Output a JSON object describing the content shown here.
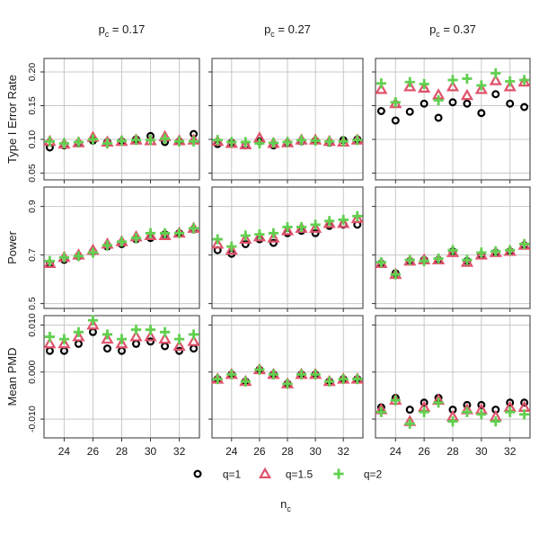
{
  "chart_data": {
    "type": "scatter",
    "x_label": "n",
    "x_label_sub": "c",
    "x_ticks": [
      24,
      26,
      28,
      30,
      32
    ],
    "x_range": [
      22.6,
      33.4
    ],
    "x_values": [
      23,
      24,
      25,
      26,
      27,
      28,
      29,
      30,
      31,
      32,
      33
    ],
    "legend": {
      "position": "bottom",
      "entries": [
        {
          "label": "q=1",
          "shape": "circle",
          "color": "#000000"
        },
        {
          "label": "q=1.5",
          "shape": "triangle",
          "color": "#df536b"
        },
        {
          "label": "q=2",
          "shape": "plus",
          "color": "#61d04f"
        }
      ]
    },
    "columns": [
      {
        "label_main": "p",
        "label_sub": "c",
        "label_rest": " = 0.17"
      },
      {
        "label_main": "p",
        "label_sub": "c",
        "label_rest": " = 0.27"
      },
      {
        "label_main": "p",
        "label_sub": "c",
        "label_rest": " = 0.37"
      }
    ],
    "rows": [
      {
        "label": "Type I Error Rate",
        "y_range": [
          0.04,
          0.22
        ],
        "y_ticks": [
          0.05,
          0.1,
          0.15,
          0.2
        ],
        "y_tick_labels": [
          "0.05",
          "0.10",
          "0.15",
          "0.20"
        ],
        "panels": [
          {
            "series": [
              [
                0.088,
                0.091,
                0.094,
                0.098,
                0.096,
                0.097,
                0.1,
                0.105,
                0.096,
                0.097,
                0.108
              ],
              [
                0.097,
                0.093,
                0.095,
                0.103,
                0.096,
                0.097,
                0.099,
                0.098,
                0.104,
                0.098,
                0.099
              ],
              [
                0.097,
                0.094,
                0.096,
                0.1,
                0.094,
                0.098,
                0.099,
                0.099,
                0.101,
                0.097,
                0.097
              ]
            ]
          },
          {
            "series": [
              [
                0.093,
                0.095,
                0.091,
                0.097,
                0.091,
                0.094,
                0.097,
                0.098,
                0.095,
                0.099,
                0.1
              ],
              [
                0.097,
                0.094,
                0.092,
                0.102,
                0.094,
                0.095,
                0.099,
                0.099,
                0.097,
                0.096,
                0.099
              ],
              [
                0.099,
                0.096,
                0.096,
                0.094,
                0.095,
                0.096,
                0.099,
                0.098,
                0.097,
                0.097,
                0.099
              ]
            ]
          },
          {
            "series": [
              [
                0.142,
                0.128,
                0.141,
                0.153,
                0.132,
                0.155,
                0.153,
                0.139,
                0.167,
                0.153,
                0.148
              ],
              [
                0.174,
                0.153,
                0.178,
                0.176,
                0.166,
                0.178,
                0.165,
                0.174,
                0.187,
                0.178,
                0.185
              ],
              [
                0.183,
                0.155,
                0.185,
                0.182,
                0.158,
                0.188,
                0.19,
                0.18,
                0.198,
                0.186,
                0.188
              ]
            ]
          }
        ]
      },
      {
        "label": "Power",
        "y_range": [
          0.48,
          0.98
        ],
        "y_ticks": [
          0.5,
          0.7,
          0.9
        ],
        "y_tick_labels": [
          "0.5",
          "0.7",
          "0.9"
        ],
        "panels": [
          {
            "series": [
              [
                0.665,
                0.68,
                0.695,
                0.715,
                0.735,
                0.745,
                0.765,
                0.77,
                0.785,
                0.79,
                0.805
              ],
              [
                0.665,
                0.69,
                0.7,
                0.72,
                0.745,
                0.755,
                0.775,
                0.78,
                0.78,
                0.79,
                0.81
              ],
              [
                0.675,
                0.69,
                0.695,
                0.71,
                0.74,
                0.755,
                0.77,
                0.79,
                0.79,
                0.79,
                0.81
              ]
            ]
          },
          {
            "series": [
              [
                0.72,
                0.705,
                0.745,
                0.765,
                0.75,
                0.79,
                0.8,
                0.79,
                0.82,
                0.825,
                0.825
              ],
              [
                0.745,
                0.72,
                0.765,
                0.775,
                0.77,
                0.8,
                0.81,
                0.81,
                0.83,
                0.83,
                0.85
              ],
              [
                0.765,
                0.735,
                0.78,
                0.785,
                0.79,
                0.815,
                0.815,
                0.825,
                0.84,
                0.845,
                0.86
              ]
            ]
          },
          {
            "series": [
              [
                0.665,
                0.625,
                0.675,
                0.68,
                0.68,
                0.715,
                0.675,
                0.7,
                0.71,
                0.715,
                0.74
              ],
              [
                0.665,
                0.62,
                0.675,
                0.68,
                0.68,
                0.71,
                0.67,
                0.7,
                0.71,
                0.715,
                0.74
              ],
              [
                0.67,
                0.62,
                0.68,
                0.675,
                0.685,
                0.72,
                0.68,
                0.71,
                0.715,
                0.72,
                0.745
              ]
            ]
          }
        ]
      },
      {
        "label": "Mean PMD",
        "y_range": [
          -0.014,
          0.012
        ],
        "y_ticks": [
          -0.01,
          0.0,
          0.01
        ],
        "y_tick_labels": [
          "-0.010",
          "0.000",
          "0.010"
        ],
        "panels": [
          {
            "series": [
              [
                0.0045,
                0.0045,
                0.006,
                0.0085,
                0.005,
                0.0045,
                0.006,
                0.0065,
                0.0055,
                0.0045,
                0.005
              ],
              [
                0.006,
                0.006,
                0.0075,
                0.01,
                0.007,
                0.006,
                0.0075,
                0.0075,
                0.007,
                0.0055,
                0.0065
              ],
              [
                0.0075,
                0.007,
                0.0085,
                0.011,
                0.008,
                0.007,
                0.009,
                0.009,
                0.0085,
                0.007,
                0.008
              ]
            ]
          },
          {
            "series": [
              [
                -0.0015,
                -0.0005,
                -0.002,
                0.0005,
                -0.0005,
                -0.0025,
                -0.0005,
                -0.0005,
                -0.002,
                -0.0015,
                -0.0015
              ],
              [
                -0.0015,
                -0.0005,
                -0.002,
                0.0005,
                -0.0005,
                -0.0025,
                -0.0005,
                -0.0005,
                -0.002,
                -0.0015,
                -0.0015
              ],
              [
                -0.0015,
                -0.0005,
                -0.002,
                0.0005,
                -0.0005,
                -0.0025,
                -0.0005,
                -0.0005,
                -0.002,
                -0.0015,
                -0.0015
              ]
            ]
          },
          {
            "series": [
              [
                -0.0075,
                -0.0055,
                -0.008,
                -0.0065,
                -0.0055,
                -0.008,
                -0.007,
                -0.007,
                -0.008,
                -0.0065,
                -0.0065
              ],
              [
                -0.008,
                -0.006,
                -0.0105,
                -0.0075,
                -0.006,
                -0.0095,
                -0.008,
                -0.008,
                -0.0095,
                -0.0075,
                -0.0075
              ],
              [
                -0.0085,
                -0.006,
                -0.011,
                -0.0085,
                -0.0065,
                -0.0105,
                -0.0085,
                -0.009,
                -0.0105,
                -0.0085,
                -0.009
              ]
            ]
          }
        ]
      }
    ]
  }
}
